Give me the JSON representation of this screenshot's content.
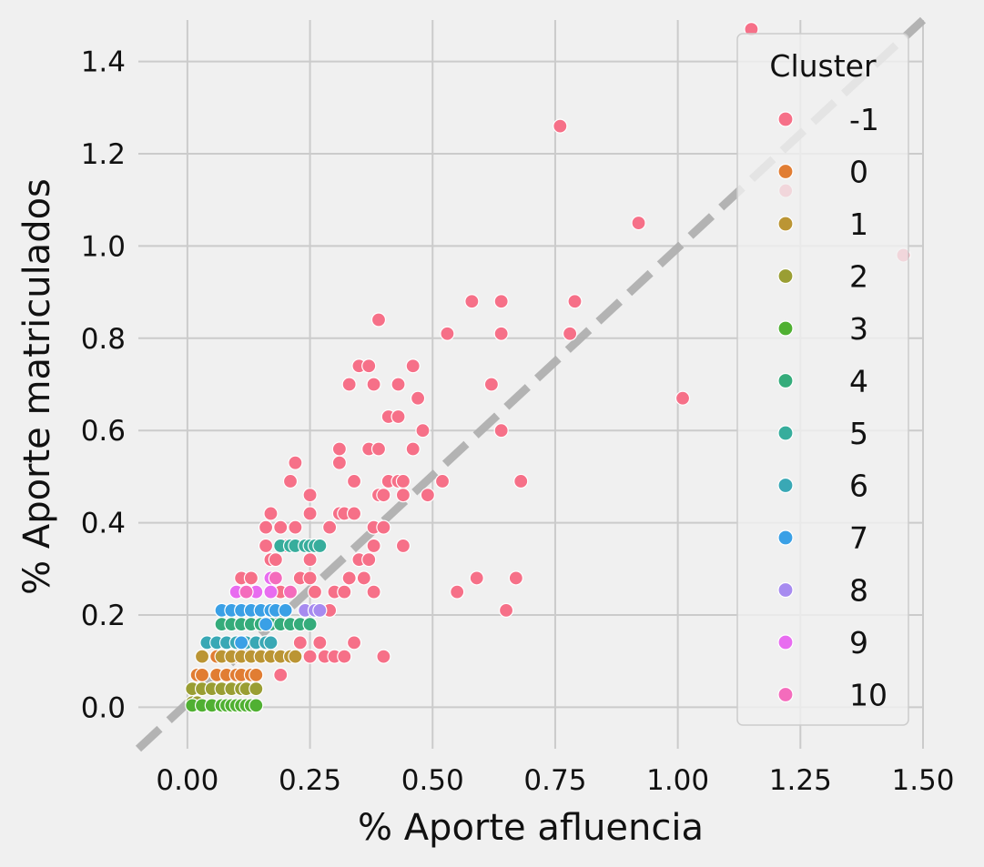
{
  "chart_data": {
    "type": "scatter",
    "title": "",
    "xlabel": "% Aporte afluencia",
    "ylabel": "% Aporte matriculados",
    "xlim": [
      -0.1,
      1.5
    ],
    "ylim": [
      -0.09,
      1.49
    ],
    "xticks": [
      0.0,
      0.25,
      0.5,
      0.75,
      1.0,
      1.25,
      1.5
    ],
    "xtick_labels": [
      "0.00",
      "0.25",
      "0.50",
      "0.75",
      "1.00",
      "1.25",
      "1.50"
    ],
    "yticks": [
      0.0,
      0.2,
      0.4,
      0.6,
      0.8,
      1.0,
      1.2,
      1.4
    ],
    "ytick_labels": [
      "0.0",
      "0.2",
      "0.4",
      "0.6",
      "0.8",
      "1.0",
      "1.2",
      "1.4"
    ],
    "grid": true,
    "reference_line": {
      "style": "dashed",
      "color": "#b0b0b0",
      "from": [
        -0.1,
        -0.09
      ],
      "to": [
        1.5,
        1.49
      ]
    },
    "legend": {
      "title": "Cluster",
      "position": "right"
    },
    "series": [
      {
        "name": "-1",
        "color": "#f67088",
        "points": [
          [
            1.15,
            1.47
          ],
          [
            0.76,
            1.26
          ],
          [
            0.92,
            1.05
          ],
          [
            1.22,
            1.12
          ],
          [
            1.46,
            0.98
          ],
          [
            0.39,
            0.84
          ],
          [
            0.58,
            0.88
          ],
          [
            0.64,
            0.88
          ],
          [
            0.79,
            0.88
          ],
          [
            0.53,
            0.81
          ],
          [
            0.64,
            0.81
          ],
          [
            0.78,
            0.81
          ],
          [
            0.35,
            0.74
          ],
          [
            0.37,
            0.74
          ],
          [
            0.46,
            0.74
          ],
          [
            0.33,
            0.7
          ],
          [
            0.38,
            0.7
          ],
          [
            0.43,
            0.7
          ],
          [
            0.62,
            0.7
          ],
          [
            0.47,
            0.67
          ],
          [
            1.01,
            0.67
          ],
          [
            0.41,
            0.63
          ],
          [
            0.43,
            0.63
          ],
          [
            0.48,
            0.6
          ],
          [
            0.64,
            0.6
          ],
          [
            0.31,
            0.56
          ],
          [
            0.37,
            0.56
          ],
          [
            0.39,
            0.56
          ],
          [
            0.46,
            0.56
          ],
          [
            0.22,
            0.53
          ],
          [
            0.31,
            0.53
          ],
          [
            0.21,
            0.49
          ],
          [
            0.34,
            0.49
          ],
          [
            0.41,
            0.49
          ],
          [
            0.43,
            0.49
          ],
          [
            0.44,
            0.49
          ],
          [
            0.52,
            0.49
          ],
          [
            0.68,
            0.49
          ],
          [
            0.25,
            0.46
          ],
          [
            0.39,
            0.46
          ],
          [
            0.4,
            0.46
          ],
          [
            0.44,
            0.46
          ],
          [
            0.49,
            0.46
          ],
          [
            0.17,
            0.42
          ],
          [
            0.25,
            0.42
          ],
          [
            0.31,
            0.42
          ],
          [
            0.32,
            0.42
          ],
          [
            0.34,
            0.42
          ],
          [
            0.16,
            0.39
          ],
          [
            0.19,
            0.39
          ],
          [
            0.22,
            0.39
          ],
          [
            0.29,
            0.39
          ],
          [
            0.38,
            0.39
          ],
          [
            0.4,
            0.39
          ],
          [
            0.16,
            0.35
          ],
          [
            0.2,
            0.35
          ],
          [
            0.38,
            0.35
          ],
          [
            0.44,
            0.35
          ],
          [
            0.17,
            0.32
          ],
          [
            0.18,
            0.32
          ],
          [
            0.25,
            0.32
          ],
          [
            0.35,
            0.32
          ],
          [
            0.37,
            0.32
          ],
          [
            0.11,
            0.28
          ],
          [
            0.13,
            0.28
          ],
          [
            0.23,
            0.28
          ],
          [
            0.25,
            0.28
          ],
          [
            0.33,
            0.28
          ],
          [
            0.36,
            0.28
          ],
          [
            0.59,
            0.28
          ],
          [
            0.67,
            0.28
          ],
          [
            0.26,
            0.25
          ],
          [
            0.3,
            0.25
          ],
          [
            0.32,
            0.25
          ],
          [
            0.38,
            0.25
          ],
          [
            0.55,
            0.25
          ],
          [
            0.19,
            0.25
          ],
          [
            0.29,
            0.21
          ],
          [
            0.65,
            0.21
          ],
          [
            0.23,
            0.14
          ],
          [
            0.27,
            0.14
          ],
          [
            0.34,
            0.14
          ],
          [
            0.28,
            0.11
          ],
          [
            0.3,
            0.11
          ],
          [
            0.32,
            0.11
          ],
          [
            0.4,
            0.11
          ],
          [
            0.25,
            0.11
          ],
          [
            0.19,
            0.07
          ]
        ]
      },
      {
        "name": "0",
        "color": "#e17d33",
        "points": [
          [
            0.02,
            0.07
          ],
          [
            0.03,
            0.07
          ],
          [
            0.06,
            0.07
          ],
          [
            0.08,
            0.07
          ],
          [
            0.1,
            0.07
          ],
          [
            0.11,
            0.07
          ],
          [
            0.13,
            0.07
          ],
          [
            0.14,
            0.07
          ],
          [
            0.06,
            0.11
          ],
          [
            0.1,
            0.11
          ]
        ]
      },
      {
        "name": "1",
        "color": "#bb9534",
        "points": [
          [
            0.03,
            0.11
          ],
          [
            0.07,
            0.11
          ],
          [
            0.09,
            0.11
          ],
          [
            0.11,
            0.11
          ],
          [
            0.13,
            0.11
          ],
          [
            0.15,
            0.11
          ],
          [
            0.17,
            0.11
          ],
          [
            0.19,
            0.11
          ],
          [
            0.21,
            0.11
          ],
          [
            0.22,
            0.11
          ]
        ]
      },
      {
        "name": "2",
        "color": "#9a9e33",
        "points": [
          [
            0.01,
            0.04
          ],
          [
            0.03,
            0.04
          ],
          [
            0.05,
            0.04
          ],
          [
            0.07,
            0.04
          ],
          [
            0.09,
            0.04
          ],
          [
            0.11,
            0.04
          ],
          [
            0.12,
            0.04
          ],
          [
            0.14,
            0.04
          ],
          [
            0.01,
            0.01
          ],
          [
            0.02,
            0.01
          ]
        ]
      },
      {
        "name": "3",
        "color": "#50b032",
        "points": [
          [
            0.01,
            0.004
          ],
          [
            0.03,
            0.004
          ],
          [
            0.05,
            0.004
          ],
          [
            0.07,
            0.004
          ],
          [
            0.08,
            0.004
          ],
          [
            0.09,
            0.004
          ],
          [
            0.1,
            0.004
          ],
          [
            0.11,
            0.004
          ],
          [
            0.12,
            0.004
          ],
          [
            0.13,
            0.004
          ],
          [
            0.14,
            0.004
          ]
        ]
      },
      {
        "name": "4",
        "color": "#35ac7b",
        "points": [
          [
            0.07,
            0.18
          ],
          [
            0.09,
            0.18
          ],
          [
            0.11,
            0.18
          ],
          [
            0.13,
            0.18
          ],
          [
            0.15,
            0.18
          ],
          [
            0.17,
            0.18
          ],
          [
            0.19,
            0.18
          ],
          [
            0.21,
            0.18
          ],
          [
            0.23,
            0.18
          ],
          [
            0.25,
            0.18
          ]
        ]
      },
      {
        "name": "5",
        "color": "#37ad9c",
        "points": [
          [
            0.19,
            0.35
          ],
          [
            0.21,
            0.35
          ],
          [
            0.22,
            0.35
          ],
          [
            0.24,
            0.35
          ],
          [
            0.25,
            0.35
          ],
          [
            0.26,
            0.35
          ],
          [
            0.27,
            0.35
          ]
        ]
      },
      {
        "name": "6",
        "color": "#39a8b5",
        "points": [
          [
            0.04,
            0.14
          ],
          [
            0.06,
            0.14
          ],
          [
            0.08,
            0.14
          ],
          [
            0.1,
            0.14
          ],
          [
            0.12,
            0.14
          ],
          [
            0.14,
            0.14
          ],
          [
            0.16,
            0.14
          ],
          [
            0.17,
            0.14
          ]
        ]
      },
      {
        "name": "7",
        "color": "#3aa0e6",
        "points": [
          [
            0.07,
            0.21
          ],
          [
            0.09,
            0.21
          ],
          [
            0.11,
            0.21
          ],
          [
            0.13,
            0.21
          ],
          [
            0.15,
            0.21
          ],
          [
            0.17,
            0.21
          ],
          [
            0.18,
            0.21
          ],
          [
            0.2,
            0.21
          ],
          [
            0.11,
            0.14
          ],
          [
            0.16,
            0.18
          ]
        ]
      },
      {
        "name": "8",
        "color": "#a78bf0",
        "points": [
          [
            0.24,
            0.21
          ],
          [
            0.26,
            0.21
          ],
          [
            0.27,
            0.21
          ]
        ]
      },
      {
        "name": "9",
        "color": "#e86cf0",
        "points": [
          [
            0.17,
            0.28
          ],
          [
            0.1,
            0.25
          ],
          [
            0.14,
            0.25
          ],
          [
            0.17,
            0.25
          ]
        ]
      },
      {
        "name": "10",
        "color": "#f46cbc",
        "points": [
          [
            0.12,
            0.25
          ],
          [
            0.18,
            0.28
          ],
          [
            0.21,
            0.25
          ]
        ]
      }
    ]
  }
}
